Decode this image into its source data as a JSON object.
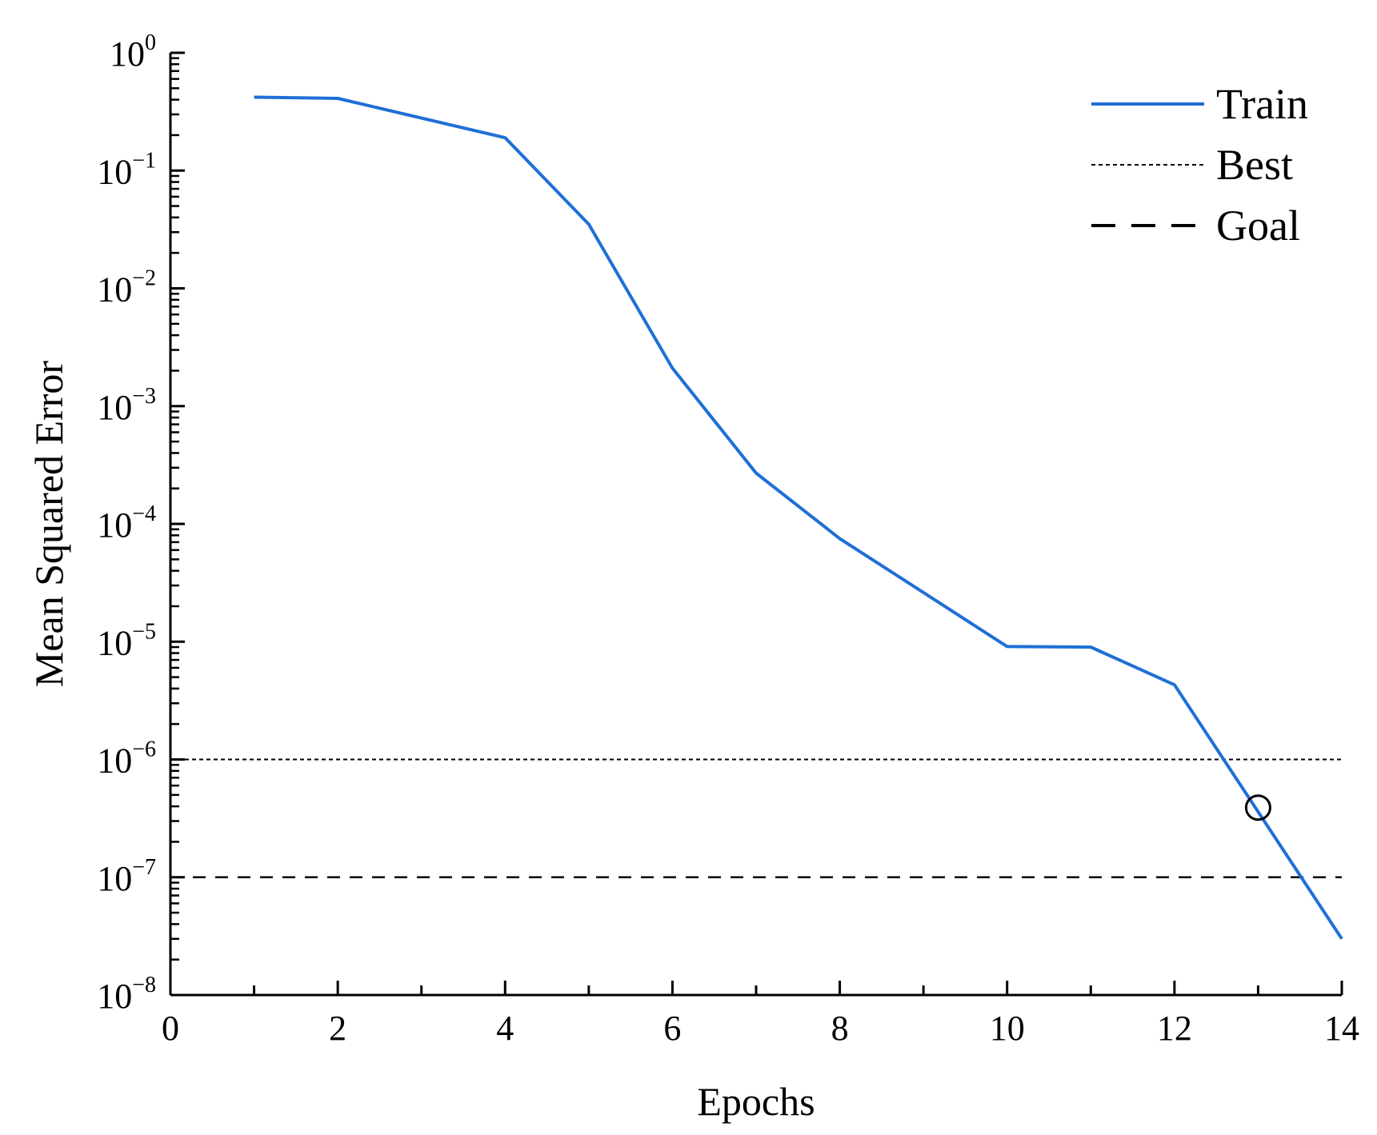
{
  "chart_data": {
    "type": "line",
    "title": "",
    "xlabel": "Epochs",
    "ylabel": "Mean Squared Error",
    "xlim": [
      0,
      14
    ],
    "ylim": [
      1e-08,
      1
    ],
    "yscale": "log",
    "x_ticks": [
      0,
      2,
      4,
      6,
      8,
      10,
      12,
      14
    ],
    "y_ticks": [
      {
        "base": "10",
        "exp": "−8",
        "value": 1e-08
      },
      {
        "base": "10",
        "exp": "−7",
        "value": 1e-07
      },
      {
        "base": "10",
        "exp": "−6",
        "value": 1e-06
      },
      {
        "base": "10",
        "exp": "−5",
        "value": 1e-05
      },
      {
        "base": "10",
        "exp": "−4",
        "value": 0.0001
      },
      {
        "base": "10",
        "exp": "−3",
        "value": 0.001
      },
      {
        "base": "10",
        "exp": "−2",
        "value": 0.01
      },
      {
        "base": "10",
        "exp": "−1",
        "value": 0.1
      },
      {
        "base": "10",
        "exp": "0",
        "value": 1
      }
    ],
    "grid": false,
    "legend_position": "top-right",
    "series": [
      {
        "name": "Train",
        "color": "#1f6fd6",
        "style": "solid",
        "x": [
          1,
          2,
          4,
          5,
          6,
          7,
          8,
          10,
          11,
          12,
          14
        ],
        "y": [
          0.42,
          0.41,
          0.19,
          0.035,
          0.0021,
          0.00027,
          7.5e-05,
          9.1e-06,
          9e-06,
          4.3e-06,
          3e-08
        ]
      },
      {
        "name": "Best",
        "color": "#000000",
        "style": "dotted",
        "y_constant": 1e-06
      },
      {
        "name": "Goal",
        "color": "#000000",
        "style": "dashed",
        "y_constant": 1e-07
      }
    ],
    "annotations": [
      {
        "type": "circle-marker",
        "x": 13,
        "y": 3.9e-07
      }
    ]
  }
}
